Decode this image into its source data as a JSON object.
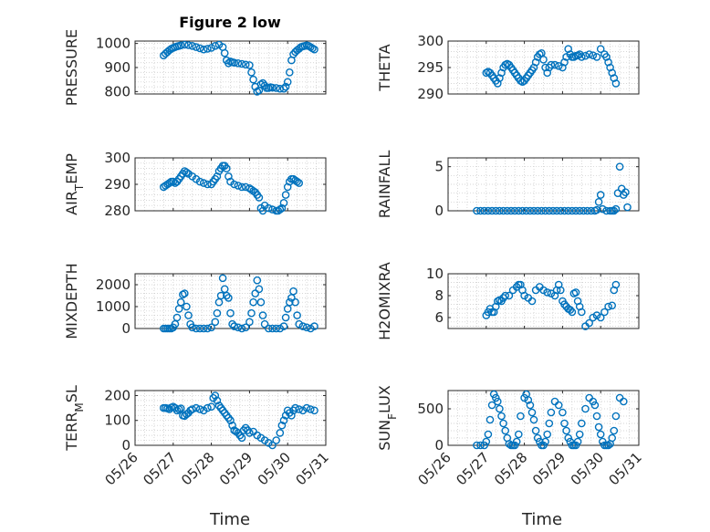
{
  "figure_title": "Figure 2 low",
  "x_ticks": [
    "05/26",
    "05/27",
    "05/28",
    "05/29",
    "05/30",
    "05/31"
  ],
  "x_label": "Time",
  "marker_color": "#0072BD",
  "chart_data": [
    {
      "type": "scatter",
      "ylabel": "PRESSURE",
      "ylim": [
        790,
        1010
      ],
      "yticks": [
        800,
        900,
        1000
      ],
      "grid": true,
      "x": [
        26.75,
        26.8,
        26.85,
        26.9,
        26.95,
        27.0,
        27.05,
        27.1,
        27.15,
        27.2,
        27.3,
        27.4,
        27.5,
        27.6,
        27.7,
        27.8,
        27.9,
        28.0,
        28.1,
        28.2,
        28.3,
        28.35,
        28.4,
        28.45,
        28.5,
        28.55,
        28.6,
        28.7,
        28.8,
        28.9,
        29.0,
        29.05,
        29.1,
        29.15,
        29.2,
        29.25,
        29.3,
        29.35,
        29.4,
        29.45,
        29.5,
        29.55,
        29.6,
        29.7,
        29.8,
        29.9,
        29.95,
        30.0,
        30.05,
        30.1,
        30.15,
        30.2,
        30.25,
        30.3,
        30.35,
        30.4,
        30.45,
        30.5,
        30.55,
        30.6,
        30.65,
        30.7
      ],
      "y": [
        950,
        958,
        965,
        972,
        978,
        982,
        985,
        988,
        990,
        992,
        995,
        993,
        990,
        985,
        980,
        975,
        978,
        982,
        990,
        995,
        985,
        960,
        930,
        918,
        925,
        922,
        920,
        918,
        915,
        912,
        910,
        880,
        850,
        820,
        800,
        805,
        830,
        835,
        825,
        815,
        815,
        818,
        816,
        815,
        812,
        812,
        820,
        840,
        880,
        930,
        955,
        965,
        972,
        978,
        985,
        988,
        990,
        992,
        990,
        985,
        980,
        975
      ]
    },
    {
      "type": "scatter",
      "ylabel": "THETA",
      "ylim": [
        290,
        300
      ],
      "yticks": [
        290,
        295,
        300
      ],
      "grid": true,
      "x": [
        27.0,
        27.05,
        27.1,
        27.15,
        27.2,
        27.25,
        27.3,
        27.35,
        27.4,
        27.45,
        27.5,
        27.55,
        27.6,
        27.65,
        27.7,
        27.75,
        27.8,
        27.85,
        27.9,
        27.95,
        28.0,
        28.05,
        28.1,
        28.15,
        28.2,
        28.25,
        28.3,
        28.35,
        28.4,
        28.45,
        28.5,
        28.55,
        28.6,
        28.65,
        28.7,
        28.8,
        28.9,
        29.0,
        29.05,
        29.1,
        29.15,
        29.2,
        29.25,
        29.3,
        29.35,
        29.4,
        29.45,
        29.5,
        29.6,
        29.7,
        29.8,
        29.9,
        30.0,
        30.1,
        30.15,
        30.2,
        30.25,
        30.3,
        30.35,
        30.4
      ],
      "y": [
        294,
        294.2,
        294,
        293.5,
        293,
        292.5,
        292,
        293,
        294,
        295,
        295.5,
        295.7,
        295.5,
        295,
        294.5,
        294,
        293.5,
        293,
        292.5,
        292.3,
        292.5,
        293,
        293.5,
        294,
        294.5,
        295,
        296,
        297,
        297.5,
        297.7,
        296.5,
        295,
        294,
        295,
        295.5,
        295.5,
        295.3,
        295,
        296,
        297,
        298.5,
        297.5,
        297,
        297,
        297.2,
        297.3,
        297.5,
        297,
        297.2,
        297.5,
        297.3,
        297,
        298.5,
        297.5,
        297,
        296,
        295,
        294,
        293,
        292
      ]
    },
    {
      "type": "scatter",
      "ylabel": "AIR_TEMP",
      "ylim": [
        280,
        300
      ],
      "yticks": [
        280,
        290,
        300
      ],
      "grid": true,
      "x": [
        26.75,
        26.8,
        26.85,
        26.9,
        26.95,
        27.0,
        27.05,
        27.1,
        27.15,
        27.2,
        27.25,
        27.3,
        27.35,
        27.4,
        27.5,
        27.6,
        27.7,
        27.8,
        27.9,
        28.0,
        28.05,
        28.1,
        28.15,
        28.2,
        28.25,
        28.3,
        28.35,
        28.4,
        28.45,
        28.5,
        28.6,
        28.7,
        28.8,
        28.9,
        29.0,
        29.05,
        29.1,
        29.15,
        29.2,
        29.25,
        29.3,
        29.35,
        29.4,
        29.5,
        29.6,
        29.7,
        29.75,
        29.8,
        29.85,
        29.9,
        29.95,
        30.0,
        30.05,
        30.1,
        30.15,
        30.2,
        30.25,
        30.3
      ],
      "y": [
        289,
        289.5,
        290,
        290.5,
        291,
        291,
        290.5,
        291,
        292,
        293,
        294,
        295,
        294.5,
        294,
        293,
        292,
        291,
        290.5,
        290,
        290,
        291,
        292,
        293,
        295,
        296,
        297,
        297,
        296,
        293,
        291,
        290,
        289.5,
        289,
        289,
        288.5,
        288,
        287.5,
        287,
        286,
        285,
        281,
        280,
        282,
        281,
        280.5,
        280,
        280,
        280.5,
        281,
        283,
        286,
        289,
        291,
        292,
        292,
        291.5,
        291,
        290.5
      ]
    },
    {
      "type": "scatter",
      "ylabel": "RAINFALL",
      "ylim": [
        0,
        6
      ],
      "yticks": [
        0,
        5
      ],
      "grid": true,
      "x": [
        26.75,
        26.85,
        26.95,
        27.05,
        27.15,
        27.25,
        27.35,
        27.45,
        27.55,
        27.65,
        27.75,
        27.85,
        27.95,
        28.05,
        28.15,
        28.25,
        28.35,
        28.45,
        28.55,
        28.65,
        28.75,
        28.85,
        28.95,
        29.05,
        29.15,
        29.25,
        29.35,
        29.45,
        29.55,
        29.65,
        29.75,
        29.85,
        29.9,
        29.95,
        30.0,
        30.05,
        30.15,
        30.25,
        30.3,
        30.35,
        30.4,
        30.45,
        30.5,
        30.55,
        30.6,
        30.65,
        30.7
      ],
      "y": [
        0,
        0,
        0,
        0,
        0,
        0,
        0,
        0,
        0,
        0,
        0,
        0,
        0,
        0,
        0,
        0,
        0,
        0,
        0,
        0,
        0,
        0,
        0,
        0,
        0,
        0,
        0,
        0,
        0,
        0,
        0,
        0,
        0.1,
        1,
        1.8,
        0.2,
        0,
        0,
        0,
        0,
        0.2,
        2,
        5,
        2.5,
        1.8,
        2.1,
        0.4
      ]
    },
    {
      "type": "scatter",
      "ylabel": "MIXDEPTH",
      "ylim": [
        0,
        2500
      ],
      "yticks": [
        0,
        1000,
        2000
      ],
      "grid": true,
      "x": [
        26.75,
        26.8,
        26.85,
        26.9,
        26.95,
        27.0,
        27.05,
        27.1,
        27.15,
        27.2,
        27.25,
        27.3,
        27.35,
        27.4,
        27.45,
        27.5,
        27.6,
        27.7,
        27.8,
        27.9,
        28.0,
        28.1,
        28.15,
        28.2,
        28.25,
        28.3,
        28.35,
        28.4,
        28.45,
        28.5,
        28.55,
        28.6,
        28.7,
        28.8,
        28.9,
        29.0,
        29.05,
        29.1,
        29.15,
        29.2,
        29.25,
        29.3,
        29.35,
        29.4,
        29.5,
        29.6,
        29.7,
        29.8,
        29.9,
        29.95,
        30.0,
        30.05,
        30.1,
        30.15,
        30.2,
        30.25,
        30.3,
        30.4,
        30.5,
        30.6,
        30.7
      ],
      "y": [
        0,
        0,
        0,
        0,
        0,
        50,
        200,
        500,
        900,
        1200,
        1550,
        1600,
        1000,
        600,
        200,
        50,
        0,
        0,
        0,
        0,
        50,
        300,
        700,
        1200,
        1500,
        2300,
        1800,
        1500,
        1400,
        700,
        200,
        100,
        50,
        0,
        50,
        300,
        700,
        1200,
        1600,
        2200,
        1800,
        1200,
        600,
        200,
        0,
        0,
        0,
        0,
        100,
        500,
        900,
        1200,
        1400,
        1700,
        1200,
        600,
        200,
        100,
        50,
        0,
        100
      ]
    },
    {
      "type": "scatter",
      "ylabel": "H2OMIXRA",
      "ylim": [
        5,
        10
      ],
      "yticks": [
        6,
        8,
        10
      ],
      "grid": true,
      "x": [
        27.0,
        27.05,
        27.1,
        27.15,
        27.2,
        27.25,
        27.3,
        27.35,
        27.4,
        27.45,
        27.5,
        27.6,
        27.7,
        27.8,
        27.85,
        27.9,
        27.95,
        28.0,
        28.1,
        28.2,
        28.3,
        28.4,
        28.5,
        28.6,
        28.7,
        28.8,
        28.85,
        28.9,
        28.95,
        29.0,
        29.05,
        29.1,
        29.15,
        29.2,
        29.25,
        29.3,
        29.35,
        29.4,
        29.45,
        29.5,
        29.6,
        29.7,
        29.8,
        29.9,
        30.0,
        30.1,
        30.2,
        30.3,
        30.35,
        30.4
      ],
      "y": [
        6.2,
        6.5,
        6.8,
        6.5,
        6.5,
        7,
        7.5,
        7.6,
        7.5,
        7.8,
        8,
        8,
        8.5,
        8.8,
        9,
        9,
        8.5,
        8,
        7.8,
        7.5,
        8.5,
        8.8,
        8.5,
        8.3,
        8.2,
        8,
        8.5,
        9,
        8.5,
        7.5,
        7.2,
        7,
        6.8,
        6.7,
        6.5,
        8.2,
        8.3,
        7.5,
        7,
        6.5,
        5.2,
        5.5,
        6,
        6.2,
        6,
        6.5,
        7,
        7.1,
        8.5,
        9
      ]
    },
    {
      "type": "scatter",
      "ylabel": "TERR_MSL",
      "ylim": [
        0,
        220
      ],
      "yticks": [
        0,
        100,
        200
      ],
      "grid": true,
      "x": [
        26.75,
        26.8,
        26.85,
        26.9,
        26.95,
        27.0,
        27.05,
        27.1,
        27.15,
        27.2,
        27.25,
        27.3,
        27.35,
        27.4,
        27.45,
        27.5,
        27.6,
        27.7,
        27.8,
        27.9,
        28.0,
        28.05,
        28.1,
        28.15,
        28.2,
        28.25,
        28.3,
        28.35,
        28.4,
        28.45,
        28.5,
        28.55,
        28.6,
        28.65,
        28.7,
        28.75,
        28.8,
        28.85,
        28.9,
        28.95,
        29.0,
        29.1,
        29.2,
        29.3,
        29.4,
        29.5,
        29.6,
        29.7,
        29.8,
        29.85,
        29.9,
        29.95,
        30.0,
        30.05,
        30.1,
        30.15,
        30.2,
        30.3,
        30.4,
        30.5,
        30.6,
        30.7
      ],
      "y": [
        150,
        150,
        148,
        145,
        152,
        155,
        150,
        140,
        145,
        148,
        120,
        118,
        125,
        130,
        140,
        145,
        150,
        145,
        140,
        150,
        155,
        190,
        200,
        180,
        160,
        150,
        140,
        130,
        120,
        110,
        100,
        80,
        60,
        55,
        50,
        40,
        30,
        60,
        70,
        60,
        50,
        55,
        40,
        30,
        20,
        10,
        0,
        20,
        50,
        80,
        100,
        120,
        140,
        130,
        120,
        140,
        150,
        145,
        140,
        150,
        145,
        140
      ]
    },
    {
      "type": "scatter",
      "ylabel": "SUN_FLUX",
      "ylim": [
        0,
        750
      ],
      "yticks": [
        0,
        500
      ],
      "grid": true,
      "x": [
        26.75,
        26.85,
        26.95,
        27.0,
        27.05,
        27.1,
        27.15,
        27.2,
        27.25,
        27.3,
        27.35,
        27.4,
        27.45,
        27.5,
        27.55,
        27.6,
        27.65,
        27.7,
        27.75,
        27.8,
        27.85,
        27.9,
        28.0,
        28.05,
        28.1,
        28.15,
        28.2,
        28.25,
        28.3,
        28.35,
        28.4,
        28.45,
        28.5,
        28.55,
        28.6,
        28.65,
        28.7,
        28.8,
        28.9,
        29.0,
        29.05,
        29.1,
        29.15,
        29.2,
        29.25,
        29.3,
        29.35,
        29.4,
        29.45,
        29.5,
        29.6,
        29.7,
        29.8,
        29.85,
        29.9,
        29.95,
        30.0,
        30.05,
        30.1,
        30.15,
        30.2,
        30.25,
        30.3,
        30.35,
        30.4,
        30.5,
        30.6
      ],
      "y": [
        0,
        0,
        0,
        50,
        150,
        350,
        550,
        700,
        650,
        600,
        500,
        400,
        300,
        200,
        100,
        20,
        0,
        0,
        0,
        50,
        150,
        400,
        650,
        700,
        620,
        550,
        450,
        350,
        200,
        100,
        50,
        0,
        0,
        50,
        150,
        300,
        450,
        600,
        550,
        450,
        300,
        200,
        100,
        50,
        0,
        0,
        0,
        50,
        150,
        300,
        500,
        650,
        600,
        550,
        400,
        250,
        150,
        50,
        0,
        0,
        0,
        20,
        100,
        200,
        400,
        650,
        600
      ]
    }
  ]
}
